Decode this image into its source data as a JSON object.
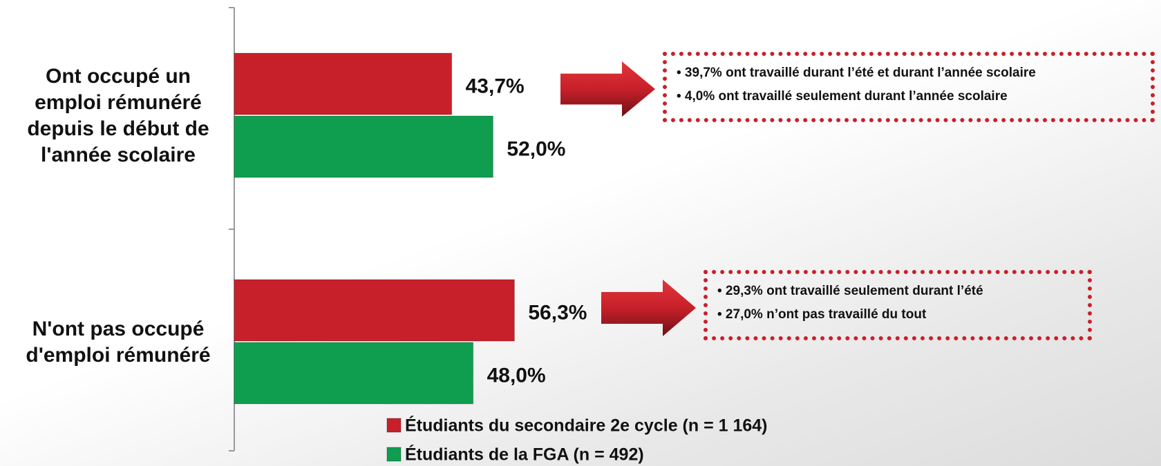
{
  "chart_data": {
    "type": "bar",
    "orientation": "horizontal",
    "categories": [
      "Ont occupé un emploi rémunéré depuis le début de l'année scolaire",
      "N'ont pas occupé d'emploi rémunéré"
    ],
    "series": [
      {
        "name": "Étudiants du secondaire 2e cycle (n = 1 164)",
        "color": "#c8202a",
        "values": [
          43.7,
          56.3
        ],
        "value_labels": [
          "43,7%",
          "56,3%"
        ]
      },
      {
        "name": "Étudiants de la FGA (n = 492)",
        "color": "#0f9e50",
        "values": [
          52.0,
          48.0
        ],
        "value_labels": [
          "52,0%",
          "48,0%"
        ]
      }
    ],
    "xlim": [
      0,
      100
    ],
    "annotations": [
      [
        "• 39,7% ont travaillé durant l’été  et durant l’année scolaire",
        "• 4,0% ont travaillé seulement durant l’année scolaire"
      ],
      [
        "• 29,3% ont travaillé seulement durant l’été",
        "• 27,0% n’ont pas travaillé du tout"
      ]
    ],
    "legend": "bottom"
  }
}
